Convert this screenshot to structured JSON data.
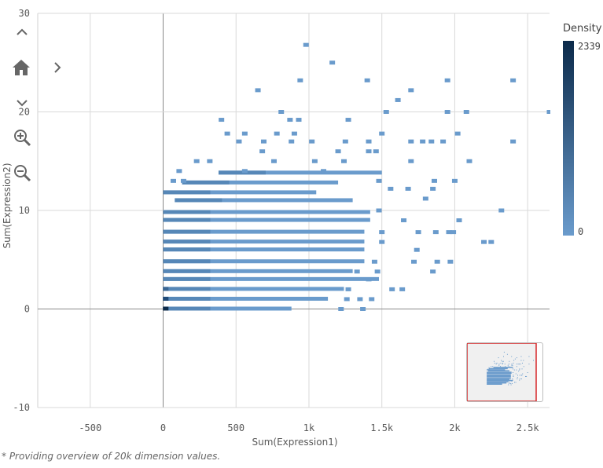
{
  "chart_data": {
    "type": "scatter",
    "title": "",
    "xlabel": "Sum(Expression1)",
    "ylabel": "Sum(Expression2)",
    "xlim": [
      -860,
      2650
    ],
    "ylim": [
      -10,
      30
    ],
    "x_ticks": [
      {
        "value": -500,
        "label": "-500"
      },
      {
        "value": 0,
        "label": "0"
      },
      {
        "value": 500,
        "label": "500"
      },
      {
        "value": 1000,
        "label": "1k"
      },
      {
        "value": 1500,
        "label": "1.5k"
      },
      {
        "value": 2000,
        "label": "2k"
      },
      {
        "value": 2500,
        "label": "2.5k"
      }
    ],
    "y_ticks": [
      {
        "value": -10,
        "label": "-10"
      },
      {
        "value": 0,
        "label": "0"
      },
      {
        "value": 10,
        "label": "10"
      },
      {
        "value": 20,
        "label": "20"
      },
      {
        "value": 30,
        "label": "30"
      }
    ],
    "grid": true,
    "legend": {
      "title": "Density",
      "max_label": "2339",
      "min_label": "0",
      "colors": [
        "#0b2a4a",
        "#6a9bcc"
      ],
      "placement": "right"
    },
    "point_color": "#6a9bcc",
    "density_bands": [
      {
        "y": 0,
        "x_start": 0,
        "x_end": 880
      },
      {
        "y": 1,
        "x_start": 0,
        "x_end": 1130
      },
      {
        "y": 2,
        "x_start": 0,
        "x_end": 1240
      },
      {
        "y": 3,
        "x_start": 0,
        "x_end": 1480
      },
      {
        "y": 3.8,
        "x_start": 0,
        "x_end": 1300
      },
      {
        "y": 4.8,
        "x_start": 0,
        "x_end": 1380
      },
      {
        "y": 6,
        "x_start": 0,
        "x_end": 1380
      },
      {
        "y": 6.8,
        "x_start": 0,
        "x_end": 1380
      },
      {
        "y": 7.8,
        "x_start": 0,
        "x_end": 1380
      },
      {
        "y": 9,
        "x_start": 0,
        "x_end": 1420
      },
      {
        "y": 9.8,
        "x_start": 0,
        "x_end": 1420
      },
      {
        "y": 11,
        "x_start": 80,
        "x_end": 1300
      },
      {
        "y": 11.8,
        "x_start": 0,
        "x_end": 1050
      },
      {
        "y": 12.8,
        "x_start": 130,
        "x_end": 1200
      },
      {
        "y": 13.8,
        "x_start": 380,
        "x_end": 1500
      }
    ],
    "dark_points": [
      {
        "x": 15,
        "y": 0,
        "density": 2339
      },
      {
        "x": 15,
        "y": 1,
        "density": 900
      },
      {
        "x": 15,
        "y": 2,
        "density": 600
      }
    ],
    "points": [
      [
        980,
        26.8
      ],
      [
        1160,
        25
      ],
      [
        940,
        23.2
      ],
      [
        1400,
        23.2
      ],
      [
        650,
        22.2
      ],
      [
        1700,
        22.2
      ],
      [
        1950,
        23.2
      ],
      [
        2400,
        23.2
      ],
      [
        1610,
        21.2
      ],
      [
        810,
        20
      ],
      [
        1530,
        20
      ],
      [
        1950,
        20
      ],
      [
        2080,
        20
      ],
      [
        400,
        19.2
      ],
      [
        870,
        19.2
      ],
      [
        930,
        19.2
      ],
      [
        1270,
        19.2
      ],
      [
        440,
        17.8
      ],
      [
        560,
        17.8
      ],
      [
        780,
        17.8
      ],
      [
        900,
        17.8
      ],
      [
        1500,
        17.8
      ],
      [
        2020,
        17.8
      ],
      [
        520,
        17
      ],
      [
        690,
        17
      ],
      [
        880,
        17
      ],
      [
        1020,
        17
      ],
      [
        1250,
        17
      ],
      [
        1410,
        17
      ],
      [
        1700,
        17
      ],
      [
        1780,
        17
      ],
      [
        1840,
        17
      ],
      [
        1920,
        17
      ],
      [
        2400,
        17
      ],
      [
        680,
        16
      ],
      [
        1200,
        16
      ],
      [
        1410,
        16
      ],
      [
        1460,
        16
      ],
      [
        230,
        15
      ],
      [
        320,
        15
      ],
      [
        760,
        15
      ],
      [
        1040,
        15
      ],
      [
        1240,
        15
      ],
      [
        1700,
        15
      ],
      [
        2100,
        15
      ],
      [
        110,
        14
      ],
      [
        560,
        14
      ],
      [
        1100,
        14
      ],
      [
        70,
        13
      ],
      [
        140,
        13
      ],
      [
        1480,
        13
      ],
      [
        1860,
        13
      ],
      [
        2000,
        13
      ],
      [
        1560,
        12.2
      ],
      [
        1680,
        12.2
      ],
      [
        1850,
        12.2
      ],
      [
        1800,
        11.2
      ],
      [
        1480,
        10
      ],
      [
        2320,
        10
      ],
      [
        2030,
        9
      ],
      [
        1650,
        9
      ],
      [
        1500,
        7.8
      ],
      [
        1750,
        7.8
      ],
      [
        1870,
        7.8
      ],
      [
        1960,
        7.8
      ],
      [
        1990,
        7.8
      ],
      [
        2200,
        6.8
      ],
      [
        2250,
        6.8
      ],
      [
        1500,
        6.8
      ],
      [
        1740,
        6
      ],
      [
        1450,
        4.8
      ],
      [
        1720,
        4.8
      ],
      [
        1880,
        4.8
      ],
      [
        1970,
        4.8
      ],
      [
        1850,
        3.8
      ],
      [
        1330,
        3.8
      ],
      [
        1470,
        3.8
      ],
      [
        1410,
        3
      ],
      [
        1270,
        2
      ],
      [
        1570,
        2
      ],
      [
        1640,
        2
      ],
      [
        1260,
        1
      ],
      [
        1350,
        1
      ],
      [
        1430,
        1
      ],
      [
        1220,
        0
      ],
      [
        1370,
        0
      ],
      [
        2650,
        20
      ]
    ]
  },
  "footnote": "* Providing overview of 20k dimension values.",
  "icons": [
    "chevron-up-icon",
    "home-icon",
    "chevron-right-icon",
    "chevron-down-icon",
    "zoom-in-icon",
    "zoom-out-icon"
  ]
}
